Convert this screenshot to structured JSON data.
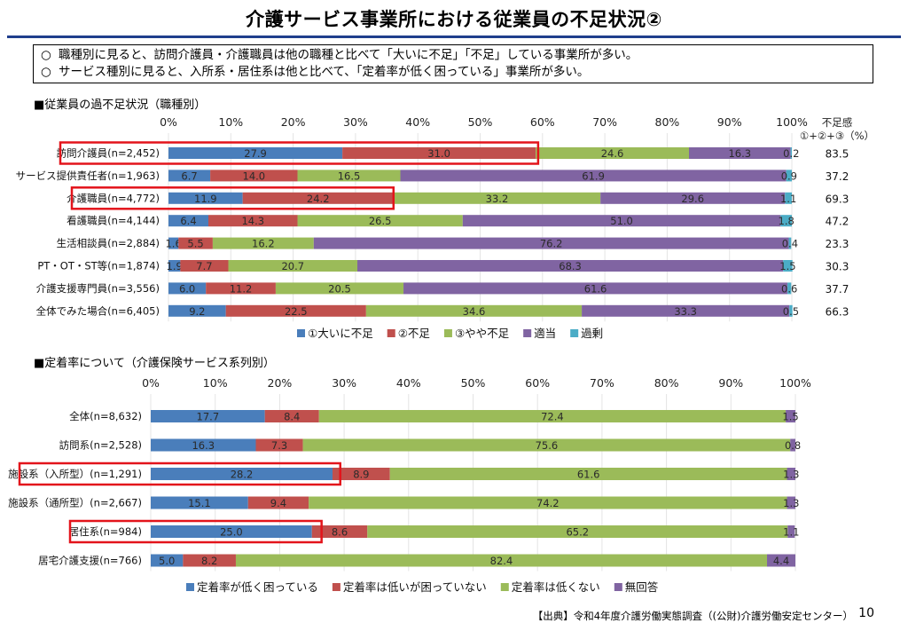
{
  "page": {
    "title": "介護サービス事業所における従業員の不足状況②",
    "summary": [
      "職種別に見ると、訪問介護員・介護職員は他の職種と比べて「大いに不足」「不足」している事業所が多い。",
      "サービス種別に見ると、入所系・居住系は他と比べて、「定着率が低く困っている」事業所が多い。"
    ],
    "bullet": "○",
    "source": "【出典】令和4年度介護労働実態調査（(公財)介護労働安定センター）",
    "page_number": "10"
  },
  "chart_data": [
    {
      "type": "bar",
      "orientation": "horizontal",
      "stacked": true,
      "title": "■従業員の過不足状況（職種別）",
      "xlim": [
        0,
        100
      ],
      "x_ticks": [
        "0%",
        "10%",
        "20%",
        "30%",
        "40%",
        "50%",
        "60%",
        "70%",
        "80%",
        "90%",
        "100%"
      ],
      "extra_column_header": [
        "不足感",
        "①+②+③（%）"
      ],
      "categories": [
        "訪問介護員(n=2,452)",
        "サービス提供責任者(n=1,963)",
        "介護職員(n=4,772)",
        "看護職員(n=4,144)",
        "生活相談員(n=2,884)",
        "PT・OT・ST等(n=1,874)",
        "介護支援専門員(n=3,556)",
        "全体でみた場合(n=6,405)"
      ],
      "series": [
        {
          "name": "①大いに不足",
          "color": "#4a7ebb",
          "values": [
            27.9,
            6.7,
            11.9,
            6.4,
            1.6,
            1.9,
            6.0,
            9.2
          ]
        },
        {
          "name": "②不足",
          "color": "#c0504d",
          "values": [
            31.0,
            14.0,
            24.2,
            14.3,
            5.5,
            7.7,
            11.2,
            22.5
          ]
        },
        {
          "name": "③やや不足",
          "color": "#9bbb59",
          "values": [
            24.6,
            16.5,
            33.2,
            26.5,
            16.2,
            20.7,
            20.5,
            34.6
          ]
        },
        {
          "name": "適当",
          "color": "#8064a2",
          "values": [
            16.3,
            61.9,
            29.6,
            51.0,
            76.2,
            68.3,
            61.6,
            33.3
          ]
        },
        {
          "name": "過剰",
          "color": "#4bacc6",
          "values": [
            0.2,
            0.9,
            1.1,
            1.8,
            0.4,
            1.5,
            0.6,
            0.5
          ]
        }
      ],
      "extra_column": [
        "83.5",
        "37.2",
        "69.3",
        "47.2",
        "23.3",
        "30.3",
        "37.7",
        "66.3"
      ],
      "highlighted": [
        0,
        2
      ],
      "highlight_span_percent": [
        59.3,
        36.1
      ],
      "legend_position": "bottom"
    },
    {
      "type": "bar",
      "orientation": "horizontal",
      "stacked": true,
      "title": "■定着率について（介護保険サービス系列別）",
      "xlim": [
        0,
        100
      ],
      "x_ticks": [
        "0%",
        "10%",
        "20%",
        "30%",
        "40%",
        "50%",
        "60%",
        "70%",
        "80%",
        "90%",
        "100%"
      ],
      "categories": [
        "全体(n=8,632)",
        "訪問系(n=2,528)",
        "施設系（入所型）(n=1,291)",
        "施設系（通所型）(n=2,667)",
        "居住系(n=984)",
        "居宅介護支援(n=766)"
      ],
      "series": [
        {
          "name": "定着率が低く困っている",
          "color": "#4a7ebb",
          "values": [
            17.7,
            16.3,
            28.2,
            15.1,
            25.0,
            5.0
          ]
        },
        {
          "name": "定着率は低いが困っていない",
          "color": "#c0504d",
          "values": [
            8.4,
            7.3,
            8.9,
            9.4,
            8.6,
            8.2
          ]
        },
        {
          "name": "定着率は低くない",
          "color": "#9bbb59",
          "values": [
            72.4,
            75.6,
            61.6,
            74.2,
            65.2,
            82.4
          ]
        },
        {
          "name": "無回答",
          "color": "#8064a2",
          "values": [
            1.5,
            0.8,
            1.3,
            1.3,
            1.1,
            4.4
          ]
        }
      ],
      "highlighted": [
        2,
        4
      ],
      "highlight_span_percent": [
        29.4,
        26.5
      ],
      "legend_position": "bottom"
    }
  ]
}
